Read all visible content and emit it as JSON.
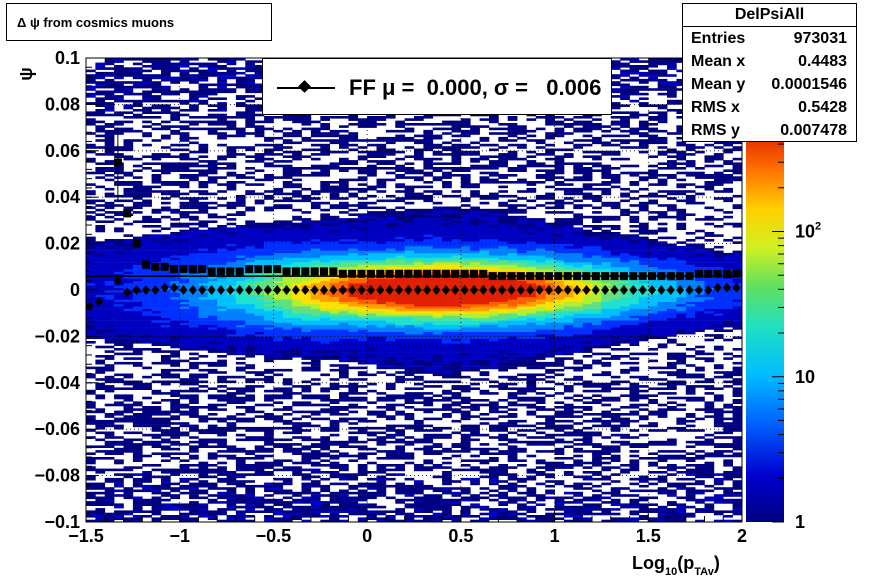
{
  "title": "Δ ψ from cosmics muons",
  "stats": {
    "name": "DelPsiAll",
    "rows": [
      {
        "label": "Entries",
        "value": "973031"
      },
      {
        "label": "Mean x",
        "value": "0.4483"
      },
      {
        "label": "Mean y",
        "value": "0.0001546"
      },
      {
        "label": "RMS x",
        "value": "0.5428"
      },
      {
        "label": "RMS y",
        "value": "0.007478"
      }
    ]
  },
  "legend": {
    "text": "FF μ =  0.000, σ =   0.006"
  },
  "chart_data": {
    "type": "heatmap",
    "xlabel": "Log",
    "xlabel_sub": "10",
    "xlabel_tail": "(p",
    "xlabel_sub2": "TAv",
    "xlabel_end": ")",
    "ylabel": "ψ",
    "xlim": [
      -1.5,
      2.0
    ],
    "ylim": [
      -0.1,
      0.1
    ],
    "x_ticks": [
      {
        "v": -1.5,
        "label": "−1.5"
      },
      {
        "v": -1.0,
        "label": "−1"
      },
      {
        "v": -0.5,
        "label": "−0.5"
      },
      {
        "v": 0.0,
        "label": "0"
      },
      {
        "v": 0.5,
        "label": "0.5"
      },
      {
        "v": 1.0,
        "label": "1"
      },
      {
        "v": 1.5,
        "label": "1.5"
      },
      {
        "v": 2.0,
        "label": "2"
      }
    ],
    "y_ticks": [
      {
        "v": -0.1,
        "label": "−0.1"
      },
      {
        "v": -0.08,
        "label": "−0.08"
      },
      {
        "v": -0.06,
        "label": "−0.06"
      },
      {
        "v": -0.04,
        "label": "−0.04"
      },
      {
        "v": -0.02,
        "label": "−0.02"
      },
      {
        "v": 0.0,
        "label": "0"
      },
      {
        "v": 0.02,
        "label": "0.02"
      },
      {
        "v": 0.04,
        "label": "0.04"
      },
      {
        "v": 0.06,
        "label": "0.06"
      },
      {
        "v": 0.08,
        "label": "0.08"
      },
      {
        "v": 0.1,
        "label": "0.1"
      }
    ],
    "colorbar": {
      "scale": "log",
      "range": [
        1,
        500
      ],
      "ticks": [
        {
          "v": 1,
          "label": "1"
        },
        {
          "v": 10,
          "label": "10"
        },
        {
          "v": 100,
          "label": "10",
          "sup": "2"
        }
      ]
    },
    "grid": true,
    "series": [
      {
        "name": "FF",
        "marker": "diamond",
        "x": [
          -1.48,
          -1.43,
          -1.33,
          -1.28,
          -1.23,
          -1.18,
          -1.13,
          -1.08,
          -1.03,
          -0.98,
          -0.93,
          -0.88,
          -0.83,
          -0.78,
          -0.73,
          -0.68,
          -0.63,
          -0.58,
          -0.53,
          -0.48,
          -0.43,
          -0.38,
          -0.33,
          -0.28,
          -0.23,
          -0.18,
          -0.13,
          -0.08,
          -0.03,
          0.02,
          0.07,
          0.12,
          0.17,
          0.22,
          0.27,
          0.32,
          0.37,
          0.42,
          0.47,
          0.52,
          0.57,
          0.62,
          0.67,
          0.72,
          0.77,
          0.82,
          0.87,
          0.92,
          0.97,
          1.02,
          1.07,
          1.12,
          1.17,
          1.22,
          1.27,
          1.32,
          1.37,
          1.42,
          1.47,
          1.52,
          1.57,
          1.62,
          1.67,
          1.72,
          1.77,
          1.82,
          1.87,
          1.92,
          1.97
        ],
        "y": [
          -0.007,
          -0.005,
          0.004,
          -0.001,
          0.0,
          0.0,
          0.0,
          0.001,
          0.001,
          0.0,
          0.0,
          0.0,
          0.0,
          0.0,
          0.0,
          0.0,
          0.0,
          0.0,
          0.0,
          0.0,
          0.0,
          0.0,
          0.0,
          0.0,
          0.0,
          0.0,
          0.0,
          0.0,
          0.0,
          0.0,
          0.0,
          0.0,
          0.0,
          0.0,
          0.0,
          0.0,
          0.0,
          0.0,
          0.0,
          0.0,
          0.0,
          0.0,
          0.0,
          0.0,
          0.0,
          0.0,
          0.0,
          0.0,
          0.0,
          0.0,
          0.0,
          0.0,
          0.0,
          0.0,
          0.0,
          0.0,
          0.0,
          0.0,
          0.0,
          0.0,
          0.0,
          0.0,
          0.0,
          0.0,
          0.0,
          0.0,
          0.001,
          0.001,
          0.001
        ]
      },
      {
        "name": "",
        "marker": "square",
        "x": [
          -1.33,
          -1.28,
          -1.23,
          -1.18,
          -1.13,
          -1.08,
          -1.03,
          -0.98,
          -0.93,
          -0.88,
          -0.83,
          -0.78,
          -0.73,
          -0.68,
          -0.63,
          -0.58,
          -0.53,
          -0.48,
          -0.43,
          -0.38,
          -0.33,
          -0.28,
          -0.23,
          -0.18,
          -0.13,
          -0.08,
          -0.03,
          0.02,
          0.07,
          0.12,
          0.17,
          0.22,
          0.27,
          0.32,
          0.37,
          0.42,
          0.47,
          0.52,
          0.57,
          0.62,
          0.67,
          0.72,
          0.77,
          0.82,
          0.87,
          0.92,
          0.97,
          1.02,
          1.07,
          1.12,
          1.17,
          1.22,
          1.27,
          1.32,
          1.37,
          1.42,
          1.47,
          1.52,
          1.57,
          1.62,
          1.67,
          1.72,
          1.77,
          1.82,
          1.87,
          1.92,
          1.97
        ],
        "y": [
          0.055,
          0.033,
          0.02,
          0.011,
          0.01,
          0.01,
          0.009,
          0.009,
          0.009,
          0.009,
          0.008,
          0.008,
          0.008,
          0.008,
          0.009,
          0.009,
          0.009,
          0.009,
          0.008,
          0.008,
          0.008,
          0.008,
          0.008,
          0.008,
          0.007,
          0.007,
          0.007,
          0.007,
          0.007,
          0.007,
          0.007,
          0.007,
          0.007,
          0.007,
          0.007,
          0.007,
          0.007,
          0.007,
          0.007,
          0.007,
          0.006,
          0.006,
          0.006,
          0.006,
          0.006,
          0.006,
          0.006,
          0.006,
          0.006,
          0.006,
          0.006,
          0.006,
          0.006,
          0.006,
          0.006,
          0.006,
          0.006,
          0.006,
          0.006,
          0.006,
          0.006,
          0.006,
          0.007,
          0.007,
          0.007,
          0.007,
          0.007
        ]
      }
    ],
    "error_bar_first": {
      "x": -1.33,
      "ylo": 0.038,
      "yhi": 0.07
    }
  }
}
